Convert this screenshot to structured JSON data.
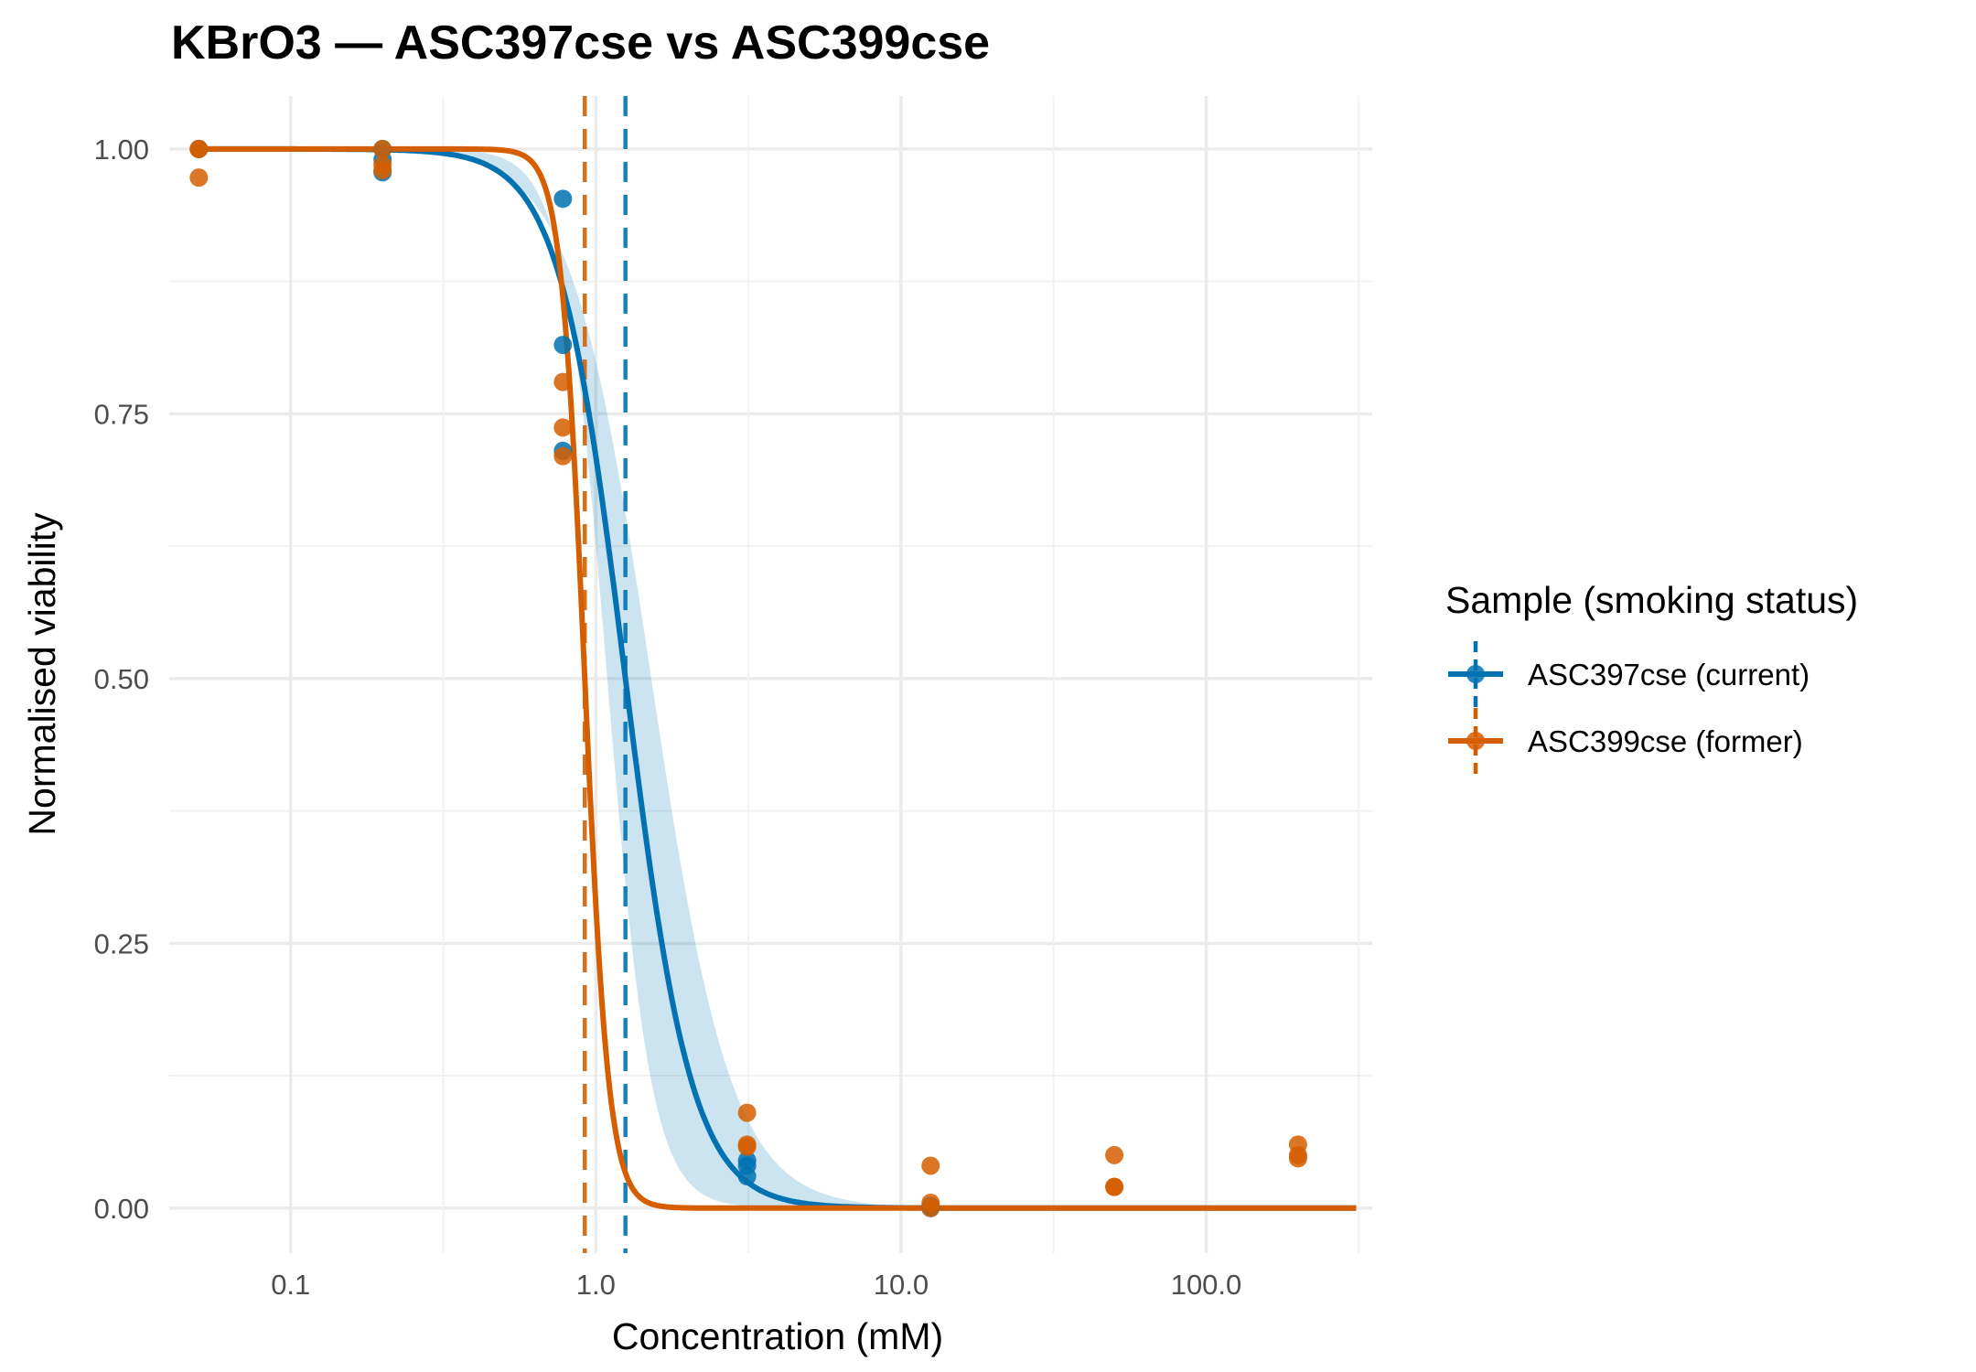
{
  "chart_data": {
    "type": "scatter",
    "title": "KBrO3 — ASC397cse vs ASC399cse",
    "xlabel": "Concentration (mM)",
    "ylabel": "Normalised viability",
    "x_scale": "log10",
    "xlim": [
      0.04,
      350
    ],
    "ylim": [
      -0.0425,
      1.05
    ],
    "x_ticks": [
      0.1,
      1.0,
      10.0,
      100.0
    ],
    "x_tick_labels": [
      "0.1",
      "1.0",
      "10.0",
      "100.0"
    ],
    "y_ticks": [
      0,
      0.25,
      0.5,
      0.75,
      1.0
    ],
    "y_tick_labels": [
      "0.00",
      "0.25",
      "0.50",
      "0.75",
      "1.00"
    ],
    "grid": true,
    "legend": {
      "title": "Sample (smoking status)",
      "position": "right"
    },
    "series": [
      {
        "name": "ASC397cse (current)",
        "color": "#0072B2",
        "ic50": 1.25,
        "curve": {
          "top": 1.0,
          "bottom": 0.0,
          "ic50": 1.25,
          "hill": 4.0
        },
        "ribbon": {
          "lower": {
            "top": 1.0,
            "bottom": 0.0,
            "ic50": 1.09,
            "hill": 6.0
          },
          "upper": {
            "top": 1.0,
            "bottom": 0.0,
            "ic50": 1.52,
            "hill": 3.3
          }
        },
        "points": [
          {
            "x": 0.05,
            "y": 1.0
          },
          {
            "x": 0.05,
            "y": 1.0
          },
          {
            "x": 0.2,
            "y": 0.978
          },
          {
            "x": 0.2,
            "y": 0.99
          },
          {
            "x": 0.2,
            "y": 1.0
          },
          {
            "x": 0.78,
            "y": 0.953
          },
          {
            "x": 0.78,
            "y": 0.815
          },
          {
            "x": 0.78,
            "y": 0.715
          },
          {
            "x": 3.13,
            "y": 0.045
          },
          {
            "x": 3.13,
            "y": 0.03
          },
          {
            "x": 3.13,
            "y": 0.04
          },
          {
            "x": 12.5,
            "y": 0.0
          },
          {
            "x": 12.5,
            "y": 0.002
          }
        ]
      },
      {
        "name": "ASC399cse (former)",
        "color": "#D55E00",
        "ic50": 0.92,
        "curve": {
          "top": 1.0,
          "bottom": 0.0,
          "ic50": 0.92,
          "hill": 11.0
        },
        "points": [
          {
            "x": 0.05,
            "y": 1.0
          },
          {
            "x": 0.05,
            "y": 0.973
          },
          {
            "x": 0.05,
            "y": 1.0
          },
          {
            "x": 0.2,
            "y": 1.0
          },
          {
            "x": 0.2,
            "y": 0.985
          },
          {
            "x": 0.2,
            "y": 0.98
          },
          {
            "x": 0.78,
            "y": 0.78
          },
          {
            "x": 0.78,
            "y": 0.737
          },
          {
            "x": 0.78,
            "y": 0.71
          },
          {
            "x": 3.13,
            "y": 0.09
          },
          {
            "x": 3.13,
            "y": 0.06
          },
          {
            "x": 3.13,
            "y": 0.058
          },
          {
            "x": 12.5,
            "y": 0.04
          },
          {
            "x": 12.5,
            "y": 0.005
          },
          {
            "x": 12.5,
            "y": 0.0
          },
          {
            "x": 50,
            "y": 0.05
          },
          {
            "x": 50,
            "y": 0.02
          },
          {
            "x": 50,
            "y": 0.02
          },
          {
            "x": 200,
            "y": 0.06
          },
          {
            "x": 200,
            "y": 0.05
          },
          {
            "x": 200,
            "y": 0.047
          }
        ]
      }
    ]
  }
}
